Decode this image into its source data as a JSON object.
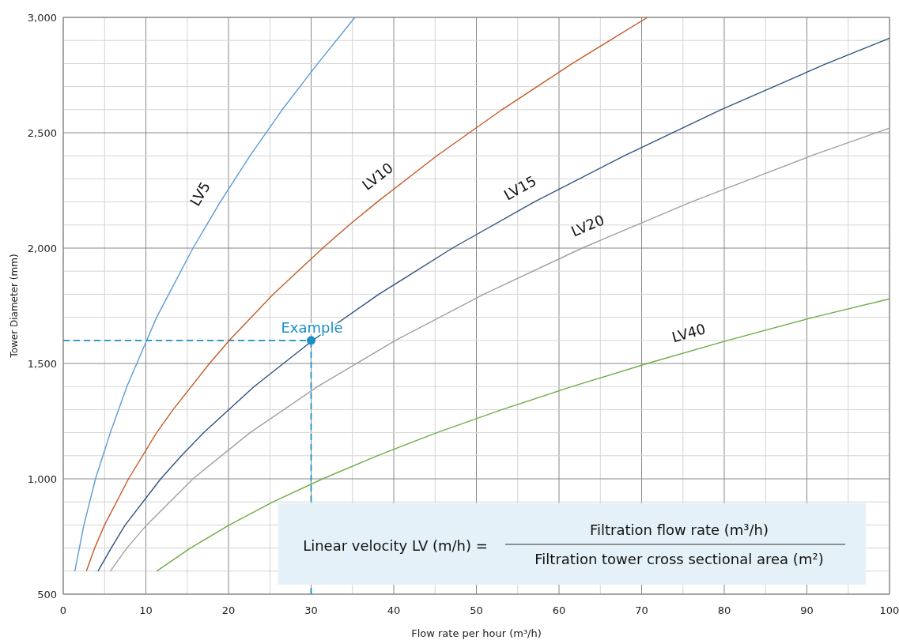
{
  "chart_data": {
    "type": "line",
    "xlabel": "Flow rate per hour (m³/h)",
    "ylabel": "Tower Diameter (mm)",
    "xlim": [
      0,
      100
    ],
    "ylim": [
      500,
      3000
    ],
    "xticks": [
      0,
      10,
      20,
      30,
      40,
      50,
      60,
      70,
      80,
      90,
      100
    ],
    "yticks": [
      {
        "value": 500,
        "label": "500"
      },
      {
        "value": 1000,
        "label": "1,000"
      },
      {
        "value": 1500,
        "label": "1,500"
      },
      {
        "value": 2000,
        "label": "2,000"
      },
      {
        "value": 2500,
        "label": "2,500"
      },
      {
        "value": 3000,
        "label": "3,000"
      }
    ],
    "grid": true,
    "marker": "none",
    "line_style": "solid",
    "series": [
      {
        "name": "LV5",
        "color": "#5b9bd5",
        "x": [
          1.4,
          2.5,
          3.9,
          4.8,
          5.7,
          7.7,
          10.1,
          11.3,
          15.7,
          19.0,
          22.6,
          26.5,
          30.8,
          35.3
        ],
        "values": [
          600,
          800,
          1000,
          1100,
          1200,
          1400,
          1600,
          1700,
          2000,
          2200,
          2400,
          2600,
          2800,
          3000
        ]
      },
      {
        "name": "LV10",
        "color": "#c55a28",
        "x": [
          2.8,
          3.8,
          5.0,
          7.9,
          11.3,
          13.3,
          17.7,
          20.1,
          25.4,
          31.4,
          34.6,
          38.0,
          45.2,
          53.1,
          61.6,
          70.7
        ],
        "values": [
          600,
          700,
          800,
          1000,
          1200,
          1300,
          1500,
          1600,
          1800,
          2000,
          2100,
          2200,
          2400,
          2600,
          2800,
          3000
        ]
      },
      {
        "name": "LV15",
        "color": "#2e5480",
        "x": [
          4.2,
          5.8,
          7.5,
          11.8,
          14.3,
          17.0,
          23.1,
          30.2,
          38.2,
          47.1,
          57.0,
          67.9,
          79.6,
          92.4,
          100
        ],
        "values": [
          600,
          700,
          800,
          1000,
          1100,
          1200,
          1400,
          1600,
          1800,
          2000,
          2200,
          2400,
          2600,
          2800,
          2910
        ]
      },
      {
        "name": "LV20",
        "color": "#a0a0a0",
        "x": [
          5.7,
          7.7,
          10.1,
          15.7,
          22.6,
          30.8,
          40.2,
          50.9,
          62.8,
          76.0,
          90.5,
          100
        ],
        "values": [
          600,
          700,
          800,
          1000,
          1200,
          1400,
          1600,
          1800,
          2000,
          2200,
          2400,
          2520
        ]
      },
      {
        "name": "LV40",
        "color": "#70ad47",
        "x": [
          11.3,
          15.4,
          20.1,
          25.4,
          31.4,
          38.0,
          45.2,
          53.1,
          61.6,
          70.7,
          80.4,
          90.8,
          100
        ],
        "values": [
          600,
          700,
          800,
          900,
          1000,
          1100,
          1200,
          1300,
          1400,
          1500,
          1600,
          1700,
          1780
        ]
      },
      {
        "type": "scatter",
        "marker": "circle",
        "color": "#1a8fc6",
        "x": [
          30
        ],
        "values": [
          1600
        ]
      }
    ],
    "ref_lines": [
      {
        "axis": "x",
        "value": 30,
        "color": "#1a8fc6",
        "line_style": "dashed"
      },
      {
        "axis": "y",
        "value": 1600,
        "color": "#1a8fc6",
        "line_style": "dashed"
      }
    ],
    "annotations": [
      {
        "text": "Example",
        "x": 30,
        "y": 1600
      },
      "Linear velocity LV (m/h) =",
      "Filtration flow rate (m³/h)",
      "Filtration tower cross sectional area (m²)"
    ]
  }
}
